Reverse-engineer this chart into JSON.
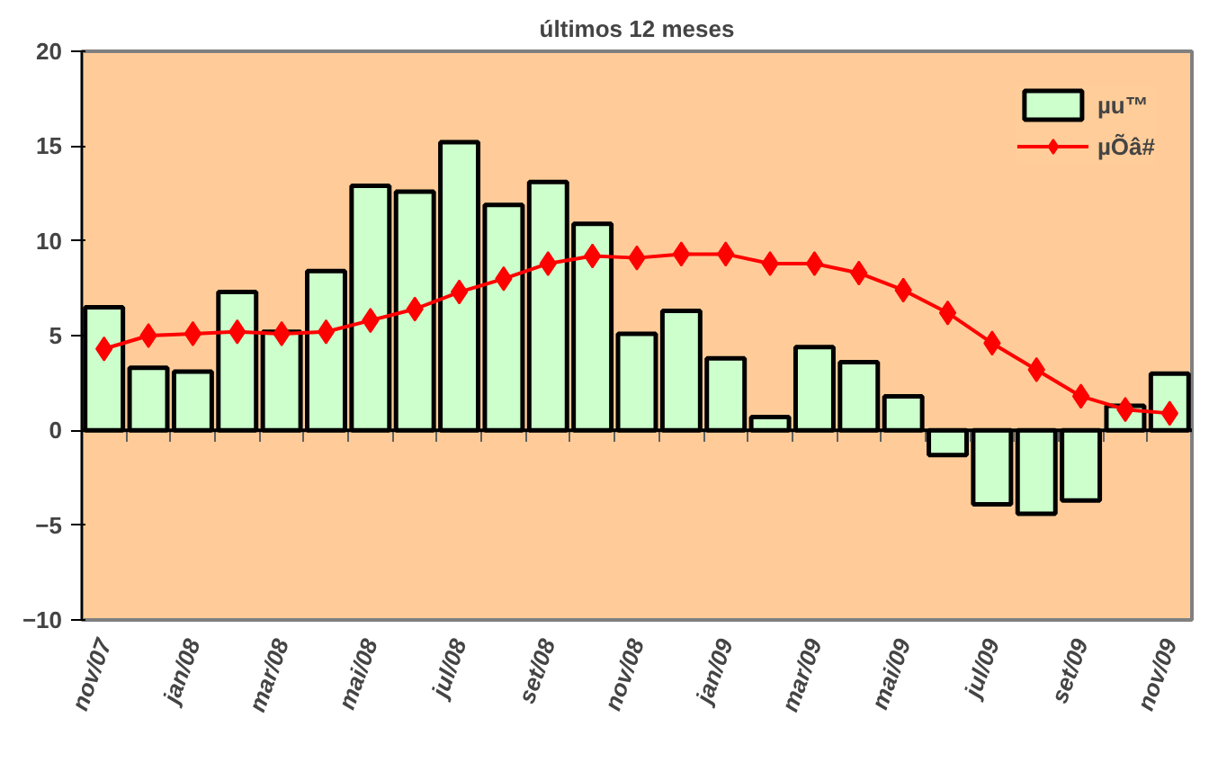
{
  "chart_data": {
    "type": "bar",
    "title": "últimos 12 meses",
    "categories": [
      "nov/07",
      null,
      "jan/08",
      null,
      "mar/08",
      null,
      "mai/08",
      null,
      "jul/08",
      null,
      "set/08",
      null,
      "nov/08",
      null,
      "jan/09",
      null,
      "mar/09",
      null,
      "mai/09",
      null,
      "jul/09",
      null,
      "set/09",
      null,
      "nov/09"
    ],
    "series": [
      {
        "name": "µu™",
        "color": "#ccffcc",
        "values": [
          6.5,
          3.3,
          3.1,
          7.3,
          5.2,
          8.4,
          12.9,
          12.6,
          15.2,
          11.9,
          13.1,
          10.9,
          5.1,
          6.3,
          3.8,
          0.7,
          4.4,
          3.6,
          1.8,
          -1.3,
          -3.9,
          -4.4,
          -3.7,
          1.3,
          3.0
        ]
      },
      {
        "name": "µÕâ#",
        "type": "line",
        "color": "#ff0000",
        "marker": "diamond",
        "values": [
          4.3,
          5.0,
          5.1,
          5.2,
          5.1,
          5.2,
          5.8,
          6.4,
          7.3,
          8.0,
          8.8,
          9.2,
          9.1,
          9.3,
          9.3,
          8.8,
          8.8,
          8.3,
          7.4,
          6.2,
          4.6,
          3.2,
          1.8,
          1.1,
          0.9
        ]
      }
    ],
    "ylim": [
      -10,
      20
    ],
    "yticks": [
      -10,
      -5,
      0,
      5,
      10,
      15,
      20
    ],
    "ref_lines": [
      {
        "axis": "y",
        "value": 0,
        "color": "#000000"
      }
    ],
    "grid": false,
    "legend": "top right"
  }
}
